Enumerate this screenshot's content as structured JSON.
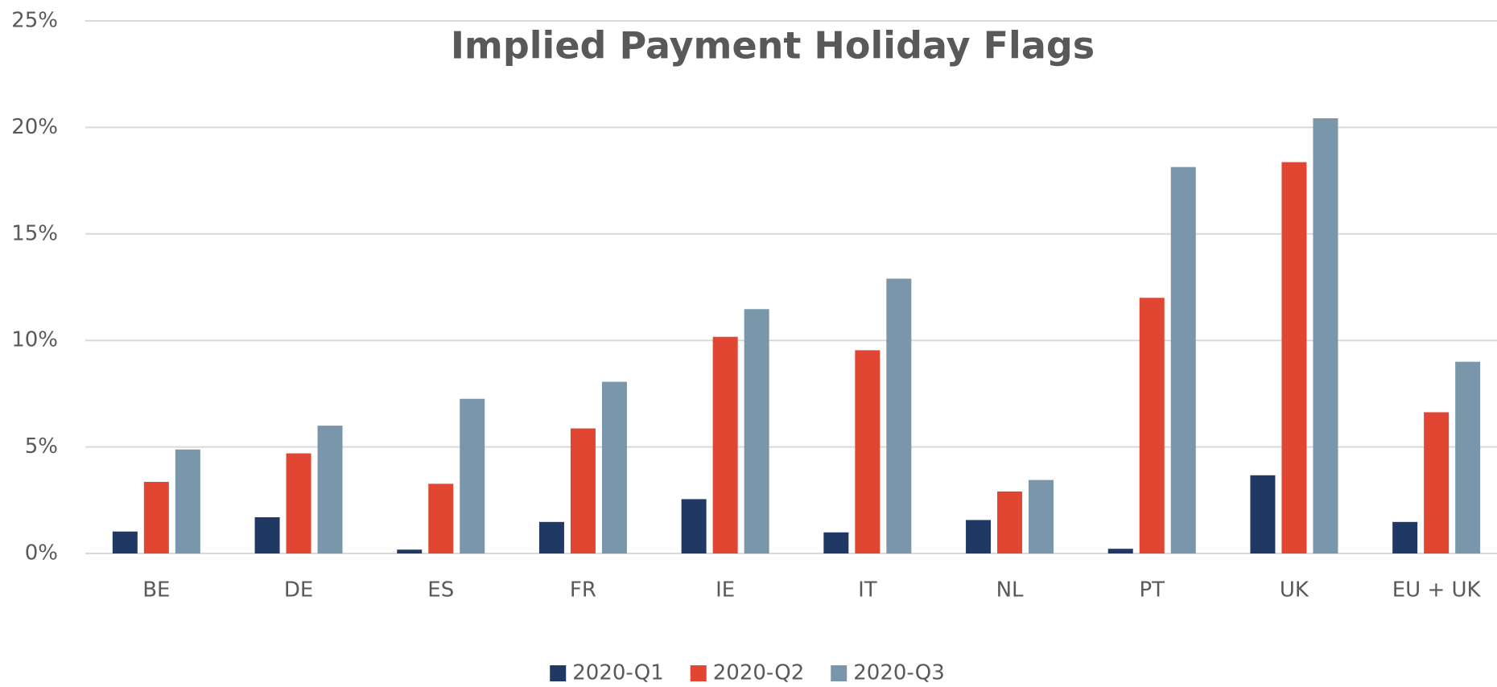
{
  "chart_data": {
    "type": "bar",
    "title": "Implied Payment Holiday Flags",
    "categories": [
      "BE",
      "DE",
      "ES",
      "FR",
      "IE",
      "IT",
      "NL",
      "PT",
      "UK",
      "EU + UK"
    ],
    "series": [
      {
        "name": "2020-Q1",
        "color": "#1f3864",
        "values": [
          1.03,
          1.7,
          0.18,
          1.48,
          2.55,
          0.99,
          1.57,
          0.22,
          3.67,
          1.48
        ]
      },
      {
        "name": "2020-Q2",
        "color": "#e04632",
        "values": [
          3.36,
          4.7,
          3.27,
          5.87,
          10.17,
          9.54,
          2.91,
          12.0,
          18.37,
          6.63
        ]
      },
      {
        "name": "2020-Q3",
        "color": "#7a96ab",
        "values": [
          4.88,
          6.0,
          7.26,
          8.06,
          11.47,
          12.9,
          3.45,
          18.14,
          20.43,
          9.0
        ]
      }
    ],
    "ylim": [
      0,
      25
    ],
    "yticks": [
      {
        "value": 0,
        "label": "0%"
      },
      {
        "value": 5,
        "label": "5%"
      },
      {
        "value": 10,
        "label": "10%"
      },
      {
        "value": 15,
        "label": "15%"
      },
      {
        "value": 20,
        "label": "20%"
      },
      {
        "value": 25,
        "label": "25%"
      }
    ],
    "grid": true,
    "legend": "bottom"
  }
}
